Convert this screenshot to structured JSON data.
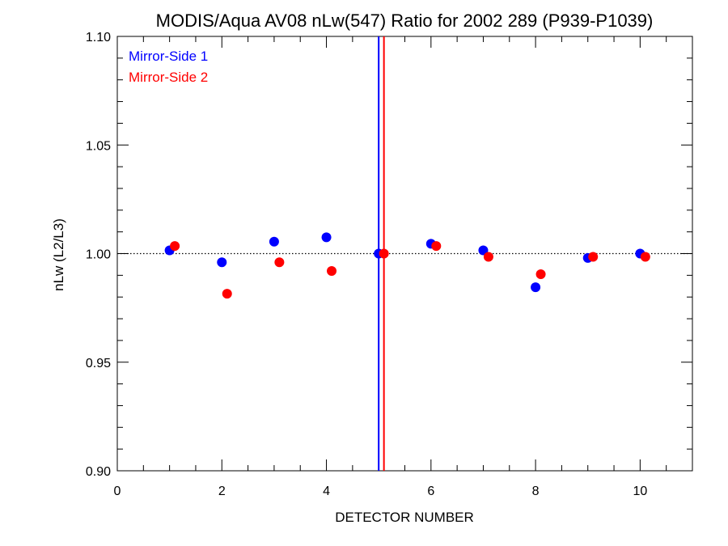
{
  "chart_data": {
    "type": "scatter",
    "title": "MODIS/Aqua AV08 nLw(547) Ratio for 2002 289 (P939-P1039)",
    "xlabel": "DETECTOR NUMBER",
    "ylabel": "nLw (L2/L3)",
    "xlim": [
      0,
      11
    ],
    "ylim": [
      0.9,
      1.1
    ],
    "x_major_ticks": [
      0,
      2,
      4,
      6,
      8,
      10
    ],
    "x_tick_labels": [
      "0",
      "2",
      "4",
      "6",
      "8",
      "10"
    ],
    "y_major_ticks": [
      0.9,
      0.95,
      1.0,
      1.05,
      1.1
    ],
    "y_tick_labels": [
      "0.90",
      "0.95",
      "1.00",
      "1.05",
      "1.10"
    ],
    "reference_line": {
      "y": 1.0,
      "style": "dotted"
    },
    "legend_position": "top-left",
    "series": [
      {
        "name": "Mirror-Side 1",
        "color": "#0000ff",
        "x": [
          1,
          2,
          3,
          4,
          5,
          6,
          7,
          8,
          9,
          10
        ],
        "y": [
          1.0015,
          0.996,
          1.0055,
          1.0075,
          1.0,
          1.0045,
          1.0015,
          0.9845,
          0.998,
          1.0
        ],
        "vertical_line_x": 5.0
      },
      {
        "name": "Mirror-Side 2",
        "color": "#ff0000",
        "x": [
          1.1,
          2.1,
          3.1,
          4.1,
          5.1,
          6.1,
          7.1,
          8.1,
          9.1,
          10.1
        ],
        "y": [
          1.0035,
          0.9815,
          0.996,
          0.992,
          1.0,
          1.0035,
          0.9985,
          0.9905,
          0.9985,
          0.9985
        ],
        "vertical_line_x": 5.1
      }
    ]
  }
}
